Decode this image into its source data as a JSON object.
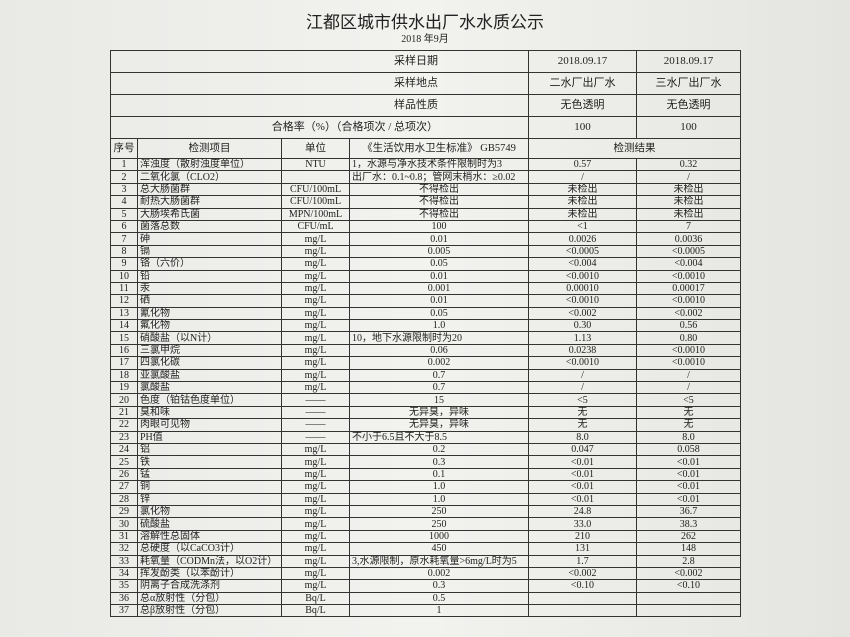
{
  "header": {
    "title": "江都区城市供水出厂水水质公示",
    "subtitle": "2018 年9月"
  },
  "summary": [
    [
      "采样日期",
      "2018.09.17",
      "2018.09.17"
    ],
    [
      "采样地点",
      "二水厂出厂水",
      "三水厂出厂水"
    ],
    [
      "样品性质",
      "无色透明",
      "无色透明"
    ],
    [
      "合格率（%）（合格项次 / 总项次）",
      "100",
      "100"
    ]
  ],
  "table": {
    "columns": [
      "序号",
      "检测项目",
      "单位",
      "《生活饮用水卫生标准》 GB5749",
      "检测结果"
    ],
    "rows": [
      [
        "1",
        "浑浊度（散射浊度单位）",
        "NTU",
        "1，水源与净水技术条件限制时为3",
        "0.57",
        "0.32"
      ],
      [
        "2",
        "二氧化氯（CLO2）",
        null,
        "出厂水：0.1~0.8；管网末梢水：≥0.02",
        "/",
        "/"
      ],
      [
        "3",
        "总大肠菌群",
        "CFU/100mL",
        "不得检出",
        "未检出",
        "未检出"
      ],
      [
        "4",
        "耐热大肠菌群",
        "CFU/100mL",
        "不得检出",
        "未检出",
        "未检出"
      ],
      [
        "5",
        "大肠埃希氏菌",
        "MPN/100mL",
        "不得检出",
        "未检出",
        "未检出"
      ],
      [
        "6",
        "菌落总数",
        "CFU/mL",
        "100",
        "<1",
        "7"
      ],
      [
        "7",
        "砷",
        "mg/L",
        "0.01",
        "0.0026",
        "0.0036"
      ],
      [
        "8",
        "镉",
        "mg/L",
        "0.005",
        "<0.0005",
        "<0.0005"
      ],
      [
        "9",
        "铬（六价）",
        "mg/L",
        "0.05",
        "<0.004",
        "<0.004"
      ],
      [
        "10",
        "铅",
        "mg/L",
        "0.01",
        "<0.0010",
        "<0.0010"
      ],
      [
        "11",
        "汞",
        "mg/L",
        "0.001",
        "0.00010",
        "0.00017"
      ],
      [
        "12",
        "硒",
        "mg/L",
        "0.01",
        "<0.0010",
        "<0.0010"
      ],
      [
        "13",
        "氰化物",
        "mg/L",
        "0.05",
        "<0.002",
        "<0.002"
      ],
      [
        "14",
        "氟化物",
        "mg/L",
        "1.0",
        "0.30",
        "0.56"
      ],
      [
        "15",
        "硝酸盐（以N计）",
        "mg/L",
        "10，地下水源限制时为20",
        "1.13",
        "0.80"
      ],
      [
        "16",
        "三氯甲烷",
        "mg/L",
        "0.06",
        "0.0238",
        "<0.0010"
      ],
      [
        "17",
        "四氯化碳",
        "mg/L",
        "0.002",
        "<0.0010",
        "<0.0010"
      ],
      [
        "18",
        "亚氯酸盐",
        "mg/L",
        "0.7",
        "/",
        "/"
      ],
      [
        "19",
        "氯酸盐",
        "mg/L",
        "0.7",
        "/",
        "/"
      ],
      [
        "20",
        "色度（铂钴色度单位）",
        "——",
        "15",
        "<5",
        "<5"
      ],
      [
        "21",
        "臭和味",
        "——",
        "无异臭，异味",
        "无",
        "无"
      ],
      [
        "22",
        "肉眼可见物",
        "——",
        "无异臭，异味",
        "无",
        "无"
      ],
      [
        "23",
        "PH值",
        "——",
        "不小于6.5且不大于8.5",
        "8.0",
        "8.0"
      ],
      [
        "24",
        "铝",
        "mg/L",
        "0.2",
        "0.047",
        "0.058"
      ],
      [
        "25",
        "铁",
        "mg/L",
        "0.3",
        "<0.01",
        "<0.01"
      ],
      [
        "26",
        "锰",
        "mg/L",
        "0.1",
        "<0.01",
        "<0.01"
      ],
      [
        "27",
        "铜",
        "mg/L",
        "1.0",
        "<0.01",
        "<0.01"
      ],
      [
        "28",
        "锌",
        "mg/L",
        "1.0",
        "<0.01",
        "<0.01"
      ],
      [
        "29",
        "氯化物",
        "mg/L",
        "250",
        "24.8",
        "36.7"
      ],
      [
        "30",
        "硫酸盐",
        "mg/L",
        "250",
        "33.0",
        "38.3"
      ],
      [
        "31",
        "溶解性总固体",
        "mg/L",
        "1000",
        "210",
        "262"
      ],
      [
        "32",
        "总硬度（以CaCO3计）",
        "mg/L",
        "450",
        "131",
        "148"
      ],
      [
        "33",
        "耗氧量（CODMn法，以O2计）",
        "mg/L",
        "3,水源限制，原水耗氧量>6mg/L时为5",
        "1.7",
        "2.8"
      ],
      [
        "34",
        "挥发酚类（以苯酚计）",
        "mg/L",
        "0.002",
        "<0.002",
        "<0.002"
      ],
      [
        "35",
        "阴离子合成洗涤剂",
        "mg/L",
        "0.3",
        "<0.10",
        "<0.10"
      ],
      [
        "36",
        "总α放射性（分包）",
        "Bq/L",
        "0.5",
        null,
        null
      ],
      [
        "37",
        "总β放射性（分包）",
        "Bq/L",
        "1",
        null,
        null
      ]
    ]
  }
}
